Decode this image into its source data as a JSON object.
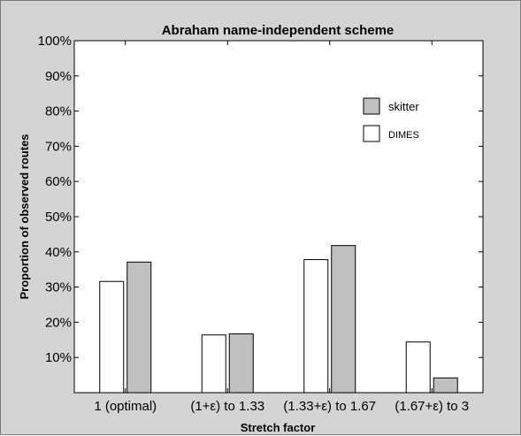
{
  "chart_data": {
    "type": "bar",
    "title": "Abraham name-independent scheme",
    "xlabel": "Stretch factor",
    "ylabel": "Proportion of observed routes",
    "categories": [
      "1 (optimal)",
      "(1+ε) to 1.33",
      "(1.33+ε) to 1.67",
      "(1.67+ε) to 3"
    ],
    "series": [
      {
        "name": "DIMES",
        "values": [
          31.6,
          16.4,
          37.8,
          14.4
        ],
        "color": "#ffffff"
      },
      {
        "name": "skitter",
        "values": [
          37.1,
          16.7,
          41.8,
          4.2
        ],
        "color": "#c0c0c0"
      }
    ],
    "ylim": [
      0,
      100
    ],
    "yticks": [
      "10%",
      "20%",
      "30%",
      "40%",
      "50%",
      "60%",
      "70%",
      "80%",
      "90%",
      "100%"
    ],
    "legend_position": "top-right",
    "grid": false,
    "colors": {
      "background": "#d4d4d4",
      "plot_area": "#ffffff",
      "outline": "#000000"
    }
  }
}
